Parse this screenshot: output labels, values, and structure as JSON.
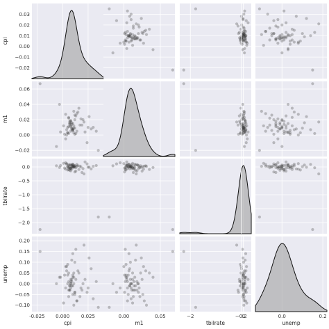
{
  "chart_data": {
    "type": "scatter",
    "variables": [
      "cpi",
      "m1",
      "tbilrate",
      "unemp"
    ],
    "diagonal": "kde",
    "axis_labels": {
      "x": [
        "cpi",
        "m1",
        "tbilrate",
        "unemp"
      ],
      "y": [
        "cpi",
        "m1",
        "tbilrate",
        "unemp"
      ]
    },
    "ranges": {
      "cpi": [
        -0.03,
        0.04
      ],
      "m1": [
        -0.028,
        0.07
      ],
      "tbilrate": [
        -2.4,
        0.3
      ],
      "unemp": [
        -0.13,
        0.22
      ]
    },
    "ticks": {
      "cpi_x": [
        -0.025,
        0.0,
        0.025
      ],
      "cpi_y": [
        -0.02,
        -0.01,
        0.0,
        0.01,
        0.02,
        0.03
      ],
      "m1_x": [
        0.0,
        0.05
      ],
      "m1_y": [
        -0.02,
        0.0,
        0.02,
        0.04,
        0.06
      ],
      "tbilrate_x": [
        -2,
        0
      ],
      "tbilrate_y": [
        -2.0,
        -1.5,
        -1.0,
        -0.5,
        0.0
      ],
      "unemp_x": [
        -0.2,
        0.0,
        0.2
      ],
      "unemp_y": [
        -0.1,
        -0.05,
        0.0,
        0.05,
        0.1,
        0.15,
        0.2
      ]
    },
    "tick_labels": {
      "cpi_x": [
        "-0.025",
        "0.000",
        "0.025"
      ],
      "cpi_y": [
        "−0.02",
        "−0.01",
        "0.00",
        "0.01",
        "0.02",
        "0.03"
      ],
      "m1_x": [
        "0.00",
        "0.05"
      ],
      "m1_y": [
        "−0.02",
        "0.00",
        "0.02",
        "0.04",
        "0.06"
      ],
      "tbilrate_x": [
        "−2",
        "0"
      ],
      "tbilrate_y": [
        "−2.0",
        "−1.5",
        "−1.0",
        "−0.5",
        "0.0"
      ],
      "unemp_x": [
        "−0.2",
        "0.0",
        "0.2"
      ],
      "unemp_y": [
        "−0.10",
        "−0.05",
        "0.00",
        "0.05",
        "0.10",
        "0.15",
        "0.20"
      ]
    },
    "points": {
      "cpi": [
        0.005,
        0.008,
        0.01,
        0.012,
        0.006,
        0.009,
        0.011,
        0.007,
        0.013,
        0.004,
        0.01,
        0.008,
        0.015,
        0.003,
        0.009,
        0.012,
        0.006,
        0.011,
        0.007,
        0.01,
        0.014,
        0.002,
        0.008,
        0.019,
        0.022,
        0.026,
        0.03,
        0.016,
        0.024,
        0.021,
        0.033,
        0.018,
        0.028,
        0.001,
        -0.003,
        -0.006,
        0.005,
        0.012,
        0.009,
        0.007,
        0.01,
        0.006,
        0.013,
        0.011,
        0.008,
        0.004,
        0.017,
        0.02,
        -0.002,
        0.025,
        0.009,
        0.012,
        0.006,
        0.01,
        0.008,
        0.014,
        0.003,
        0.011,
        0.007,
        0.005,
        -0.022,
        0.035
      ],
      "m1": [
        0.01,
        0.005,
        0.015,
        0.02,
        0.002,
        0.008,
        0.012,
        0.018,
        0.025,
        0.0,
        0.006,
        0.011,
        0.03,
        -0.005,
        0.014,
        0.009,
        0.022,
        0.003,
        0.016,
        0.007,
        0.028,
        0.001,
        0.019,
        0.013,
        0.004,
        0.024,
        0.01,
        0.035,
        -0.01,
        0.017,
        0.005,
        0.021,
        0.008,
        0.012,
        0.04,
        -0.015,
        0.003,
        0.026,
        0.009,
        0.014,
        0.006,
        0.011,
        0.002,
        0.031,
        0.018,
        0.007,
        0.013,
        0.02,
        0.004,
        0.01,
        0.016,
        0.001,
        0.023,
        0.008,
        0.012,
        0.005,
        0.027,
        0.009,
        0.015,
        0.003,
        0.067,
        -0.02
      ],
      "tbilrate": [
        0.0,
        -0.05,
        0.1,
        0.05,
        -0.1,
        0.02,
        -0.02,
        0.08,
        -0.15,
        0.12,
        0.0,
        -0.06,
        0.04,
        0.15,
        -0.08,
        0.01,
        -0.03,
        0.06,
        -0.12,
        0.09,
        0.03,
        -0.04,
        0.07,
        -0.2,
        0.18,
        -0.01,
        0.02,
        -0.09,
        0.11,
        -0.25,
        0.05,
        0.0,
        -0.07,
        0.13,
        -0.02,
        0.04,
        -0.11,
        0.01,
        0.06,
        -0.05,
        0.0,
        0.08,
        -0.03,
        0.02,
        -0.14,
        0.1,
        0.03,
        -0.06,
        0.05,
        -0.01,
        0.07,
        -0.18,
        0.04,
        0.0,
        -0.04,
        0.09,
        -0.08,
        0.02,
        -0.02,
        0.01,
        -2.25,
        -1.8
      ],
      "unemp": [
        0.0,
        -0.02,
        0.03,
        -0.04,
        0.01,
        -0.01,
        0.05,
        -0.03,
        0.02,
        0.08,
        -0.05,
        0.0,
        0.06,
        -0.02,
        0.01,
        0.1,
        -0.06,
        0.03,
        -0.01,
        0.14,
        -0.08,
        0.04,
        0.0,
        -0.03,
        0.02,
        0.12,
        -0.07,
        0.05,
        -0.04,
        0.18,
        0.01,
        -0.02,
        0.07,
        -0.09,
        0.03,
        0.0,
        0.09,
        -0.05,
        0.02,
        -0.01,
        0.04,
        -0.03,
        0.16,
        -0.1,
        0.01,
        0.06,
        -0.06,
        0.0,
        0.03,
        -0.02,
        0.11,
        -0.04,
        0.05,
        -0.01,
        0.02,
        -0.08,
        0.08,
        0.0,
        -0.03,
        0.04,
        0.15,
        -0.11
      ]
    }
  }
}
